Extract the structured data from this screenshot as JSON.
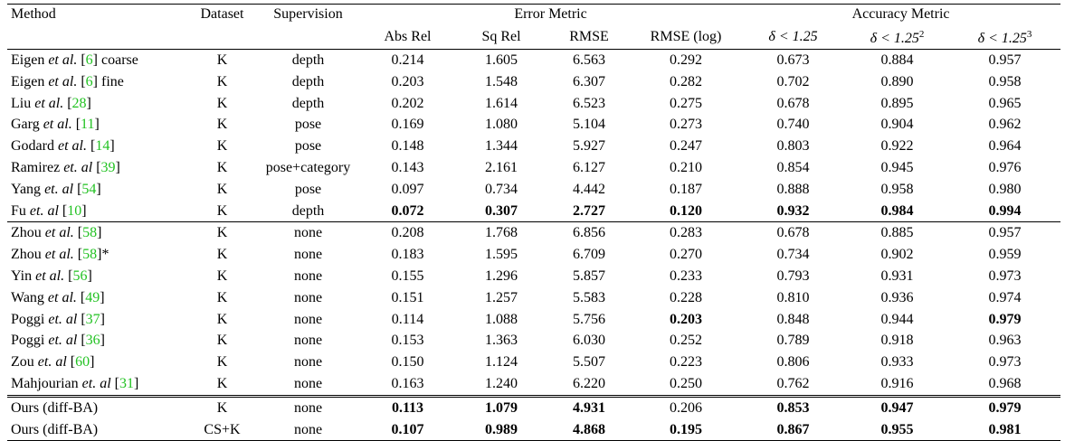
{
  "header": {
    "method": "Method",
    "dataset": "Dataset",
    "supervision": "Supervision",
    "error_metric": "Error Metric",
    "accuracy_metric": "Accuracy Metric",
    "cols": [
      "Abs Rel",
      "Sq Rel",
      "RMSE",
      "RMSE (log)",
      "δ < 1.25",
      "δ < 1.25",
      "δ < 1.25"
    ],
    "exp2": "2",
    "exp3": "3"
  },
  "rows": [
    {
      "pre": "Eigen ",
      "etal": "et al.",
      "cite": "6",
      "post": " coarse",
      "dataset": "K",
      "sup": "depth",
      "v": [
        "0.214",
        "1.605",
        "6.563",
        "0.292",
        "0.673",
        "0.884",
        "0.957"
      ],
      "bold": []
    },
    {
      "pre": "Eigen ",
      "etal": "et al.",
      "cite": "6",
      "post": " fine",
      "dataset": "K",
      "sup": "depth",
      "v": [
        "0.203",
        "1.548",
        "6.307",
        "0.282",
        "0.702",
        "0.890",
        "0.958"
      ],
      "bold": []
    },
    {
      "pre": "Liu ",
      "etal": "et al.",
      "cite": "28",
      "post": "",
      "dataset": "K",
      "sup": "depth",
      "v": [
        "0.202",
        "1.614",
        "6.523",
        "0.275",
        "0.678",
        "0.895",
        "0.965"
      ],
      "bold": []
    },
    {
      "pre": "Garg ",
      "etal": "et al.",
      "cite": "11",
      "post": "",
      "dataset": "K",
      "sup": "pose",
      "v": [
        "0.169",
        "1.080",
        "5.104",
        "0.273",
        "0.740",
        "0.904",
        "0.962"
      ],
      "bold": []
    },
    {
      "pre": "Godard ",
      "etal": "et al.",
      "cite": "14",
      "post": "",
      "dataset": "K",
      "sup": "pose",
      "v": [
        "0.148",
        "1.344",
        "5.927",
        "0.247",
        "0.803",
        "0.922",
        "0.964"
      ],
      "bold": []
    },
    {
      "pre": "Ramirez ",
      "etal": "et. al",
      "cite": "39",
      "post": "",
      "dataset": "K",
      "sup": "pose+category",
      "v": [
        "0.143",
        "2.161",
        "6.127",
        "0.210",
        "0.854",
        "0.945",
        "0.976"
      ],
      "bold": []
    },
    {
      "pre": "Yang ",
      "etal": "et. al",
      "cite": "54",
      "post": "",
      "dataset": "K",
      "sup": "pose",
      "v": [
        "0.097",
        "0.734",
        "4.442",
        "0.187",
        "0.888",
        "0.958",
        "0.980"
      ],
      "bold": []
    },
    {
      "pre": "Fu ",
      "etal": "et. al",
      "cite": "10",
      "post": "",
      "dataset": "K",
      "sup": "depth",
      "v": [
        "0.072",
        "0.307",
        "2.727",
        "0.120",
        "0.932",
        "0.984",
        "0.994"
      ],
      "bold": [
        0,
        1,
        2,
        3,
        4,
        5,
        6
      ]
    },
    {
      "pre": "Zhou ",
      "etal": "et al.",
      "cite": "58",
      "post": "",
      "dataset": "K",
      "sup": "none",
      "v": [
        "0.208",
        "1.768",
        "6.856",
        "0.283",
        "0.678",
        "0.885",
        "0.957"
      ],
      "bold": []
    },
    {
      "pre": "Zhou ",
      "etal": "et al.",
      "cite": "58",
      "post": "*",
      "dataset": "K",
      "sup": "none",
      "v": [
        "0.183",
        "1.595",
        "6.709",
        "0.270",
        "0.734",
        "0.902",
        "0.959"
      ],
      "bold": []
    },
    {
      "pre": "Yin ",
      "etal": "et al.",
      "cite": "56",
      "post": "",
      "dataset": "K",
      "sup": "none",
      "v": [
        "0.155",
        "1.296",
        "5.857",
        "0.233",
        "0.793",
        "0.931",
        "0.973"
      ],
      "bold": []
    },
    {
      "pre": "Wang ",
      "etal": "et al.",
      "cite": "49",
      "post": "",
      "dataset": "K",
      "sup": "none",
      "v": [
        "0.151",
        "1.257",
        "5.583",
        "0.228",
        "0.810",
        "0.936",
        "0.974"
      ],
      "bold": []
    },
    {
      "pre": "Poggi ",
      "etal": "et. al",
      "cite": "37",
      "post": "",
      "dataset": "K",
      "sup": "none",
      "v": [
        "0.114",
        "1.088",
        "5.756",
        "0.203",
        "0.848",
        "0.944",
        "0.979"
      ],
      "bold": [
        3,
        6
      ]
    },
    {
      "pre": "Poggi ",
      "etal": "et. al",
      "cite": "36",
      "post": "",
      "dataset": "K",
      "sup": "none",
      "v": [
        "0.153",
        "1.363",
        "6.030",
        "0.252",
        "0.789",
        "0.918",
        "0.963"
      ],
      "bold": []
    },
    {
      "pre": "Zou ",
      "etal": "et. al",
      "cite": "60",
      "post": "",
      "dataset": "K",
      "sup": "none",
      "v": [
        "0.150",
        "1.124",
        "5.507",
        "0.223",
        "0.806",
        "0.933",
        "0.973"
      ],
      "bold": []
    },
    {
      "pre": "Mahjourian ",
      "etal": "et. al",
      "cite": "31",
      "post": "",
      "dataset": "K",
      "sup": "none",
      "v": [
        "0.163",
        "1.240",
        "6.220",
        "0.250",
        "0.762",
        "0.916",
        "0.968"
      ],
      "bold": []
    },
    {
      "pre": "Ours (diff-BA)",
      "etal": "",
      "cite": "",
      "post": "",
      "dataset": "K",
      "sup": "none",
      "v": [
        "0.113",
        "1.079",
        "4.931",
        "0.206",
        "0.853",
        "0.947",
        "0.979"
      ],
      "bold": [
        0,
        1,
        2,
        4,
        5,
        6
      ]
    },
    {
      "pre": "Ours (diff-BA)",
      "etal": "",
      "cite": "",
      "post": "",
      "dataset": "CS+K",
      "sup": "none",
      "v": [
        "0.107",
        "0.989",
        "4.868",
        "0.195",
        "0.867",
        "0.955",
        "0.981"
      ],
      "bold": [
        0,
        1,
        2,
        3,
        4,
        5,
        6
      ]
    }
  ]
}
